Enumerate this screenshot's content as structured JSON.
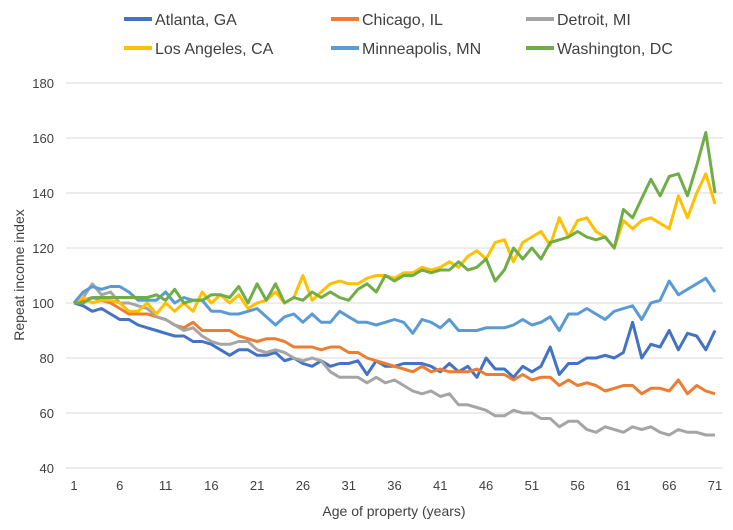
{
  "chart_data": {
    "type": "line",
    "title": "",
    "xlabel": "Age of property (years)",
    "ylabel": "Repeat income index",
    "xlim": [
      1,
      71
    ],
    "ylim": [
      40,
      180
    ],
    "x_ticks": [
      "1",
      "6",
      "11",
      "16",
      "21",
      "26",
      "31",
      "36",
      "41",
      "46",
      "51",
      "56",
      "61",
      "66",
      "71"
    ],
    "y_ticks": [
      "40",
      "60",
      "80",
      "100",
      "120",
      "140",
      "160",
      "180"
    ],
    "grid": "horizontal",
    "legend_position": "top",
    "x_start": 1,
    "series": [
      {
        "name": "Atlanta, GA",
        "color": "#4472C4",
        "values": [
          100,
          99,
          97,
          98,
          96,
          94,
          94,
          92,
          91,
          90,
          89,
          88,
          88,
          86,
          86,
          85,
          83,
          81,
          83,
          83,
          81,
          81,
          82,
          79,
          80,
          78,
          77,
          79,
          77,
          78,
          78,
          79,
          74,
          79,
          77,
          77,
          78,
          78,
          78,
          77,
          75,
          78,
          75,
          77,
          73,
          80,
          76,
          76,
          73,
          77,
          75,
          77,
          84,
          74,
          78,
          78,
          80,
          80,
          81,
          80,
          82,
          93,
          80,
          85,
          84,
          90,
          83,
          89,
          88,
          83,
          90
        ]
      },
      {
        "name": "Chicago, IL",
        "color": "#ED7D31",
        "values": [
          100,
          101,
          102,
          101,
          100,
          98,
          96,
          96,
          96,
          95,
          94,
          92,
          91,
          93,
          90,
          90,
          90,
          90,
          88,
          87,
          86,
          87,
          87,
          86,
          84,
          84,
          84,
          83,
          84,
          84,
          82,
          82,
          80,
          79,
          78,
          77,
          76,
          75,
          77,
          75,
          76,
          75,
          75,
          75,
          76,
          74,
          74,
          74,
          72,
          74,
          72,
          73,
          73,
          70,
          72,
          70,
          71,
          70,
          68,
          69,
          70,
          70,
          67,
          69,
          69,
          68,
          72,
          67,
          70,
          68,
          67
        ]
      },
      {
        "name": "Detroit, MI",
        "color": "#A5A5A5",
        "values": [
          100,
          102,
          107,
          103,
          104,
          100,
          100,
          99,
          98,
          95,
          94,
          92,
          90,
          91,
          88,
          86,
          85,
          85,
          86,
          86,
          83,
          82,
          83,
          82,
          80,
          79,
          80,
          79,
          75,
          73,
          73,
          73,
          71,
          73,
          71,
          72,
          70,
          68,
          67,
          68,
          66,
          67,
          63,
          63,
          62,
          61,
          59,
          59,
          61,
          60,
          60,
          58,
          58,
          55,
          57,
          57,
          54,
          53,
          55,
          54,
          53,
          55,
          54,
          55,
          53,
          52,
          54,
          53,
          53,
          52,
          52
        ]
      },
      {
        "name": "Los Angeles, CA",
        "color": "#FFC000",
        "values": [
          100,
          102,
          100,
          101,
          101,
          100,
          97,
          97,
          100,
          96,
          100,
          97,
          100,
          97,
          104,
          100,
          103,
          100,
          103,
          98,
          100,
          101,
          104,
          100,
          102,
          110,
          101,
          104,
          107,
          108,
          107,
          107,
          109,
          110,
          110,
          109,
          111,
          111,
          113,
          112,
          113,
          115,
          113,
          117,
          119,
          116,
          122,
          123,
          115,
          122,
          124,
          126,
          121,
          131,
          124,
          130,
          131,
          126,
          124,
          120,
          130,
          127,
          130,
          131,
          129,
          127,
          139,
          131,
          140,
          147,
          136
        ]
      },
      {
        "name": "Minneapolis, MN",
        "color": "#5B9BD5",
        "values": [
          100,
          104,
          106,
          105,
          106,
          106,
          104,
          101,
          101,
          101,
          104,
          100,
          102,
          101,
          101,
          97,
          97,
          96,
          96,
          97,
          98,
          95,
          92,
          95,
          96,
          93,
          96,
          93,
          93,
          97,
          95,
          93,
          93,
          92,
          93,
          94,
          93,
          89,
          94,
          93,
          91,
          94,
          90,
          90,
          90,
          91,
          91,
          91,
          92,
          94,
          92,
          93,
          95,
          90,
          96,
          96,
          98,
          96,
          94,
          97,
          98,
          99,
          94,
          100,
          101,
          108,
          103,
          105,
          107,
          109,
          104
        ]
      },
      {
        "name": "Washington, DC",
        "color": "#70AD47",
        "values": [
          100,
          100,
          102,
          102,
          102,
          102,
          102,
          102,
          102,
          103,
          101,
          105,
          100,
          101,
          101,
          103,
          103,
          102,
          106,
          100,
          107,
          101,
          107,
          100,
          102,
          101,
          104,
          102,
          104,
          102,
          101,
          105,
          107,
          104,
          110,
          108,
          110,
          110,
          112,
          111,
          112,
          112,
          115,
          112,
          113,
          116,
          108,
          112,
          120,
          116,
          120,
          116,
          122,
          123,
          124,
          126,
          124,
          123,
          124,
          120,
          134,
          131,
          138,
          145,
          139,
          146,
          147,
          139,
          150,
          162,
          140
        ]
      }
    ]
  }
}
